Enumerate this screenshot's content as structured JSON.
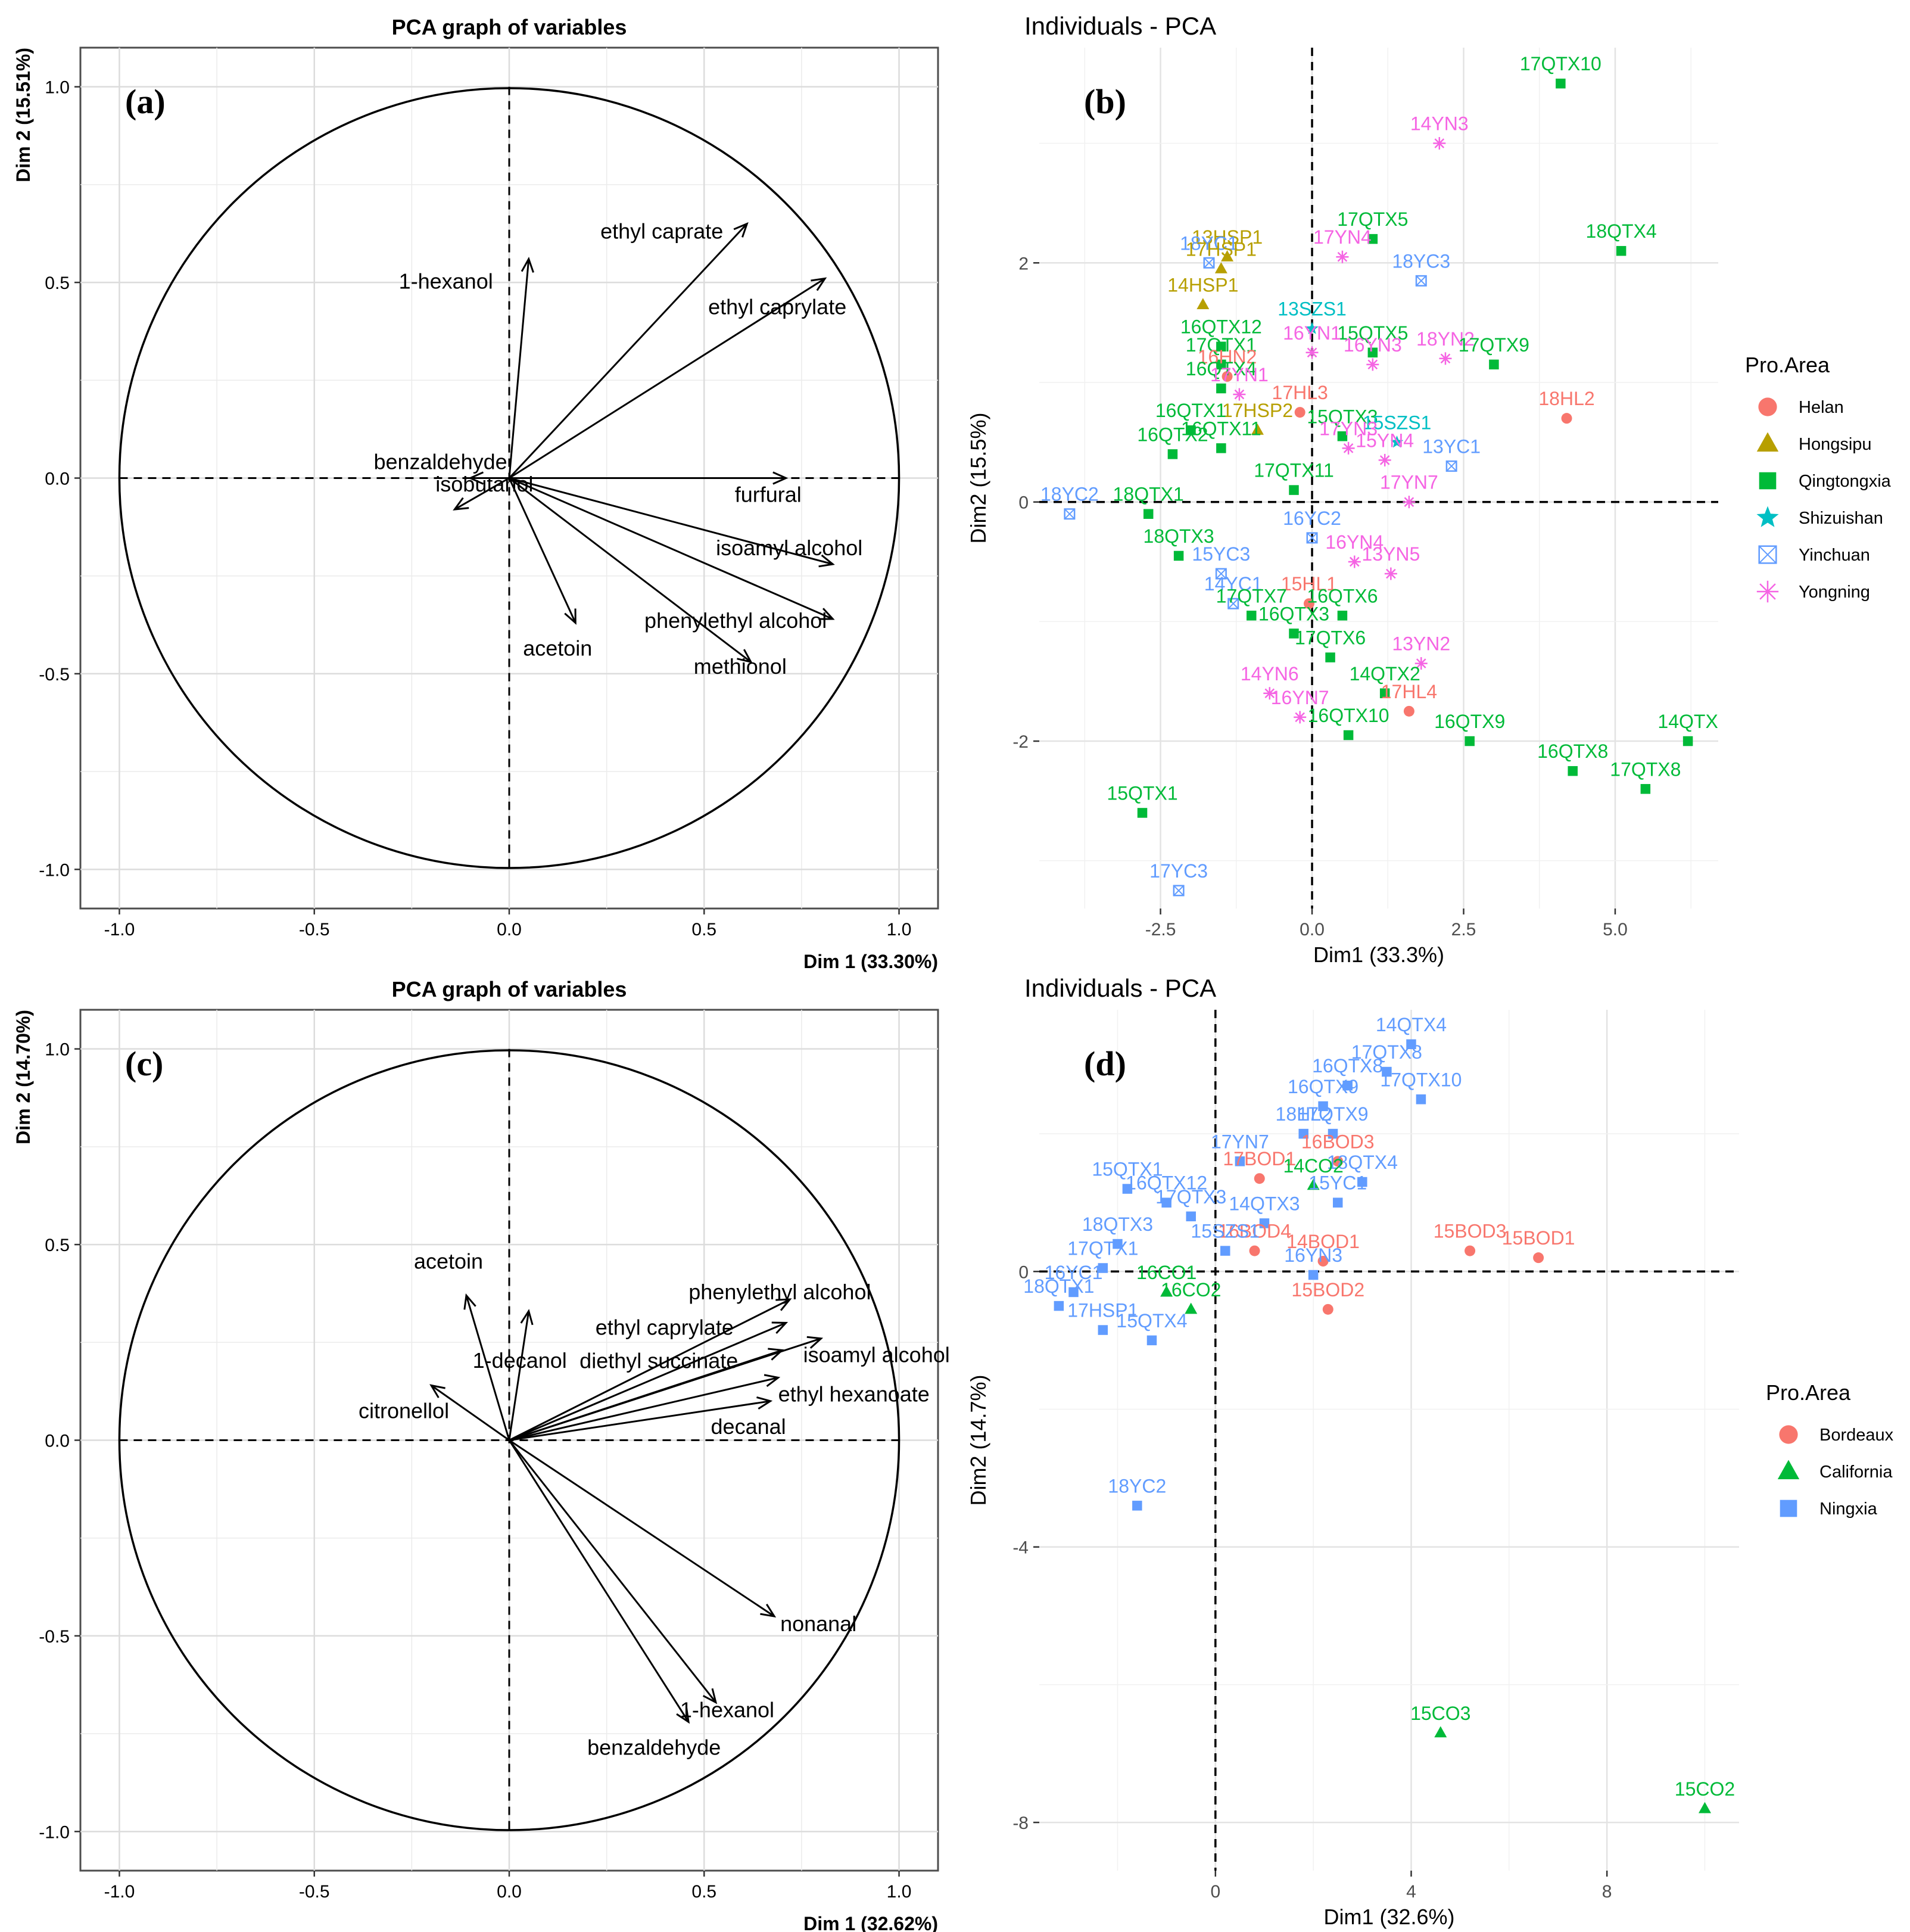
{
  "colors": {
    "helan": "#F8766D",
    "hongsipu": "#B79F00",
    "qingtongxia": "#00BA38",
    "shizuishan": "#00BFC4",
    "yinchuan": "#619CFF",
    "yongning": "#F564E3",
    "bordeaux": "#F8766D",
    "california": "#00BA38",
    "ningxia": "#619CFF",
    "panel_bg_ind": "#FFFFFF",
    "grid": "#EBEBEB",
    "axis_text": "#4D4D4D"
  },
  "chart_data": [
    {
      "id": "a",
      "type": "pca-variables",
      "letter": "(a)",
      "title": "PCA graph of variables",
      "xlabel": "Dim 1 (33.30%)",
      "ylabel": "Dim 2 (15.51%)",
      "xlim": [
        -1.1,
        1.1
      ],
      "ylim": [
        -1.1,
        1.1
      ],
      "xticks": [
        -1.0,
        -0.5,
        0.0,
        0.5,
        1.0
      ],
      "xtick_labels": [
        "-1.0",
        "-0.5",
        "0.0",
        "0.5",
        "1.0"
      ],
      "yticks": [
        -1.0,
        -0.5,
        0.0,
        0.5,
        1.0
      ],
      "ytick_labels": [
        "-1.0",
        "-0.5",
        "0.0",
        "0.5",
        "1.0"
      ],
      "vectors": [
        {
          "name": "1-hexanol",
          "x": 0.05,
          "y": 0.56
        },
        {
          "name": "ethyl caprate",
          "x": 0.61,
          "y": 0.65
        },
        {
          "name": "ethyl caprylate",
          "x": 0.81,
          "y": 0.51
        },
        {
          "name": "benzaldehyde",
          "x": -0.1,
          "y": 0.0
        },
        {
          "name": "isobutanol",
          "x": -0.14,
          "y": -0.08
        },
        {
          "name": "furfural",
          "x": 0.71,
          "y": 0.0
        },
        {
          "name": "isoamyl alcohol",
          "x": 0.83,
          "y": -0.22
        },
        {
          "name": "phenylethyl alcohol",
          "x": 0.83,
          "y": -0.36
        },
        {
          "name": "acetoin",
          "x": 0.17,
          "y": -0.37
        },
        {
          "name": "methionol",
          "x": 0.62,
          "y": -0.47
        }
      ]
    },
    {
      "id": "b",
      "type": "scatter",
      "letter": "(b)",
      "title": "Individuals - PCA",
      "xlabel": "Dim1 (33.3%)",
      "ylabel": "Dim2 (15.5%)",
      "xlim": [
        -4.5,
        6.7
      ],
      "ylim": [
        -3.4,
        3.8
      ],
      "xticks": [
        -2.5,
        0.0,
        2.5,
        5.0
      ],
      "xtick_labels": [
        "-2.5",
        "0.0",
        "2.5",
        "5.0"
      ],
      "yticks": [
        -2,
        0,
        2
      ],
      "ytick_labels": [
        "-2",
        "0",
        "2"
      ],
      "legend": {
        "title": "Pro.Area",
        "position": "right",
        "entries": [
          {
            "name": "Helan",
            "key": "helan",
            "shape": "circle"
          },
          {
            "name": "Hongsipu",
            "key": "hongsipu",
            "shape": "triangle"
          },
          {
            "name": "Qingtongxia",
            "key": "qingtongxia",
            "shape": "square"
          },
          {
            "name": "Shizuishan",
            "key": "shizuishan",
            "shape": "star"
          },
          {
            "name": "Yinchuan",
            "key": "yinchuan",
            "shape": "boxx"
          },
          {
            "name": "Yongning",
            "key": "yongning",
            "shape": "asterisk"
          }
        ]
      },
      "points": [
        {
          "label": "17QTX10",
          "x": 4.1,
          "y": 3.5,
          "g": "qingtongxia"
        },
        {
          "label": "14YN3",
          "x": 2.1,
          "y": 3.0,
          "g": "yongning"
        },
        {
          "label": "17QTX5",
          "x": 1.0,
          "y": 2.2,
          "g": "qingtongxia"
        },
        {
          "label": "18QTX4",
          "x": 5.1,
          "y": 2.1,
          "g": "qingtongxia"
        },
        {
          "label": "17YN4",
          "x": 0.5,
          "y": 2.05,
          "g": "yongning"
        },
        {
          "label": "18YC3",
          "x": 1.8,
          "y": 1.85,
          "g": "yinchuan"
        },
        {
          "label": "13HSP1",
          "x": -1.4,
          "y": 2.05,
          "g": "hongsipu"
        },
        {
          "label": "18YC1",
          "x": -1.7,
          "y": 2.0,
          "g": "yinchuan"
        },
        {
          "label": "17HSP1",
          "x": -1.5,
          "y": 1.95,
          "g": "hongsipu"
        },
        {
          "label": "14HSP1",
          "x": -1.8,
          "y": 1.65,
          "g": "hongsipu"
        },
        {
          "label": "13SZS1",
          "x": 0.0,
          "y": 1.45,
          "g": "shizuishan"
        },
        {
          "label": "16QTX12",
          "x": -1.5,
          "y": 1.3,
          "g": "qingtongxia"
        },
        {
          "label": "15QTX5",
          "x": 1.0,
          "y": 1.25,
          "g": "qingtongxia"
        },
        {
          "label": "16YN1",
          "x": 0.0,
          "y": 1.25,
          "g": "yongning"
        },
        {
          "label": "16YN3",
          "x": 1.0,
          "y": 1.15,
          "g": "yongning"
        },
        {
          "label": "18YN2",
          "x": 2.2,
          "y": 1.2,
          "g": "yongning"
        },
        {
          "label": "17QTX9",
          "x": 3.0,
          "y": 1.15,
          "g": "qingtongxia"
        },
        {
          "label": "17QTX1",
          "x": -1.5,
          "y": 1.15,
          "g": "qingtongxia"
        },
        {
          "label": "16HN2",
          "x": -1.4,
          "y": 1.05,
          "g": "helan"
        },
        {
          "label": "16QTX4",
          "x": -1.5,
          "y": 0.95,
          "g": "qingtongxia"
        },
        {
          "label": "17YN1",
          "x": -1.2,
          "y": 0.9,
          "g": "yongning"
        },
        {
          "label": "18HL2",
          "x": 4.2,
          "y": 0.7,
          "g": "helan"
        },
        {
          "label": "17HL3",
          "x": -0.2,
          "y": 0.75,
          "g": "helan"
        },
        {
          "label": "17HSP2",
          "x": -0.9,
          "y": 0.6,
          "g": "hongsipu"
        },
        {
          "label": "15QTX3",
          "x": 0.5,
          "y": 0.55,
          "g": "qingtongxia"
        },
        {
          "label": "15SZS1",
          "x": 1.4,
          "y": 0.5,
          "g": "shizuishan"
        },
        {
          "label": "16QTX1",
          "x": -2.0,
          "y": 0.6,
          "g": "qingtongxia"
        },
        {
          "label": "16QTX2",
          "x": -2.3,
          "y": 0.4,
          "g": "qingtongxia"
        },
        {
          "label": "13YC1",
          "x": 2.3,
          "y": 0.3,
          "g": "yinchuan"
        },
        {
          "label": "16QTX11",
          "x": -1.5,
          "y": 0.45,
          "g": "qingtongxia"
        },
        {
          "label": "17YN3",
          "x": 0.6,
          "y": 0.45,
          "g": "yongning"
        },
        {
          "label": "15YN4",
          "x": 1.2,
          "y": 0.35,
          "g": "yongning"
        },
        {
          "label": "17YN7",
          "x": 1.6,
          "y": 0.0,
          "g": "yongning"
        },
        {
          "label": "18YC2",
          "x": -4.0,
          "y": -0.1,
          "g": "yinchuan"
        },
        {
          "label": "18QTX1",
          "x": -2.7,
          "y": -0.1,
          "g": "qingtongxia"
        },
        {
          "label": "18QTX3",
          "x": -2.2,
          "y": -0.45,
          "g": "qingtongxia"
        },
        {
          "label": "17QTX11",
          "x": -0.3,
          "y": 0.1,
          "g": "qingtongxia"
        },
        {
          "label": "16YC2",
          "x": 0.0,
          "y": -0.3,
          "g": "yinchuan"
        },
        {
          "label": "16YN4",
          "x": 0.7,
          "y": -0.5,
          "g": "yongning"
        },
        {
          "label": "13YN5",
          "x": 1.3,
          "y": -0.6,
          "g": "yongning"
        },
        {
          "label": "15YC3",
          "x": -1.5,
          "y": -0.6,
          "g": "yinchuan"
        },
        {
          "label": "15HL1",
          "x": -0.05,
          "y": -0.85,
          "g": "helan"
        },
        {
          "label": "14YC1",
          "x": -1.3,
          "y": -0.85,
          "g": "yinchuan"
        },
        {
          "label": "17QTX7",
          "x": -1.0,
          "y": -0.95,
          "g": "qingtongxia"
        },
        {
          "label": "16QTX6",
          "x": 0.5,
          "y": -0.95,
          "g": "qingtongxia"
        },
        {
          "label": "16QTX3",
          "x": -0.3,
          "y": -1.1,
          "g": "qingtongxia"
        },
        {
          "label": "17QTX6",
          "x": 0.3,
          "y": -1.3,
          "g": "qingtongxia"
        },
        {
          "label": "13YN2",
          "x": 1.8,
          "y": -1.35,
          "g": "yongning"
        },
        {
          "label": "14QTX2",
          "x": 1.2,
          "y": -1.6,
          "g": "qingtongxia"
        },
        {
          "label": "17HL4",
          "x": 1.6,
          "y": -1.75,
          "g": "helan"
        },
        {
          "label": "14YN6",
          "x": -0.7,
          "y": -1.6,
          "g": "yongning"
        },
        {
          "label": "16YN7",
          "x": -0.2,
          "y": -1.8,
          "g": "yongning"
        },
        {
          "label": "16QTX10",
          "x": 0.6,
          "y": -1.95,
          "g": "qingtongxia"
        },
        {
          "label": "16QTX9",
          "x": 2.6,
          "y": -2.0,
          "g": "qingtongxia"
        },
        {
          "label": "16QTX8",
          "x": 4.3,
          "y": -2.25,
          "g": "qingtongxia"
        },
        {
          "label": "17QTX8",
          "x": 5.5,
          "y": -2.4,
          "g": "qingtongxia"
        },
        {
          "label": "14QTX",
          "x": 6.2,
          "y": -2.0,
          "g": "qingtongxia"
        },
        {
          "label": "15QTX1",
          "x": -2.8,
          "y": -2.6,
          "g": "qingtongxia"
        },
        {
          "label": "17YC3",
          "x": -2.2,
          "y": -3.25,
          "g": "yinchuan"
        }
      ]
    },
    {
      "id": "c",
      "type": "pca-variables",
      "letter": "(c)",
      "title": "PCA graph of variables",
      "xlabel": "Dim 1 (32.62%)",
      "ylabel": "Dim 2 (14.70%)",
      "xlim": [
        -1.1,
        1.1
      ],
      "ylim": [
        -1.1,
        1.1
      ],
      "xticks": [
        -1.0,
        -0.5,
        0.0,
        0.5,
        1.0
      ],
      "xtick_labels": [
        "-1.0",
        "-0.5",
        "0.0",
        "0.5",
        "1.0"
      ],
      "yticks": [
        -1.0,
        -0.5,
        0.0,
        0.5,
        1.0
      ],
      "ytick_labels": [
        "-1.0",
        "-0.5",
        "0.0",
        "0.5",
        "1.0"
      ],
      "vectors": [
        {
          "name": "acetoin",
          "x": -0.11,
          "y": 0.37
        },
        {
          "name": "1-decanol",
          "x": 0.05,
          "y": 0.33
        },
        {
          "name": "citronellol",
          "x": -0.2,
          "y": 0.14
        },
        {
          "name": "phenylethyl alcohol",
          "x": 0.72,
          "y": 0.36
        },
        {
          "name": "ethyl caprylate",
          "x": 0.71,
          "y": 0.3
        },
        {
          "name": "diethyl succinate",
          "x": 0.7,
          "y": 0.23
        },
        {
          "name": "isoamyl alcohol",
          "x": 0.8,
          "y": 0.26
        },
        {
          "name": "ethyl hexanoate",
          "x": 0.69,
          "y": 0.16
        },
        {
          "name": "decanal",
          "x": 0.67,
          "y": 0.1
        },
        {
          "name": "nonanal",
          "x": 0.68,
          "y": -0.45
        },
        {
          "name": "1-hexanol",
          "x": 0.53,
          "y": -0.67
        },
        {
          "name": "benzaldehyde",
          "x": 0.46,
          "y": -0.72
        }
      ]
    },
    {
      "id": "d",
      "type": "scatter",
      "letter": "(d)",
      "title": "Individuals - PCA",
      "xlabel": "Dim1 (32.6%)",
      "ylabel": "Dim2 (14.7%)",
      "xlim": [
        -3.6,
        10.7
      ],
      "ylim": [
        -8.7,
        3.8
      ],
      "xticks": [
        0,
        4,
        8
      ],
      "xtick_labels": [
        "0",
        "4",
        "8"
      ],
      "yticks": [
        -8,
        -4,
        0
      ],
      "ytick_labels": [
        "-8",
        "-4",
        "0"
      ],
      "legend": {
        "title": "Pro.Area",
        "position": "right",
        "entries": [
          {
            "name": "Bordeaux",
            "key": "bordeaux",
            "shape": "circle"
          },
          {
            "name": "California",
            "key": "california",
            "shape": "triangle"
          },
          {
            "name": "Ningxia",
            "key": "ningxia",
            "shape": "square"
          }
        ]
      },
      "points": [
        {
          "label": "14QTX4",
          "x": 4.0,
          "y": 3.3,
          "g": "ningxia"
        },
        {
          "label": "17QTX8",
          "x": 3.5,
          "y": 2.9,
          "g": "ningxia"
        },
        {
          "label": "17QTX10",
          "x": 4.2,
          "y": 2.5,
          "g": "ningxia"
        },
        {
          "label": "16QTX8",
          "x": 2.7,
          "y": 2.7,
          "g": "ningxia"
        },
        {
          "label": "16QTX9",
          "x": 2.2,
          "y": 2.4,
          "g": "ningxia"
        },
        {
          "label": "18HL2",
          "x": 1.8,
          "y": 2.0,
          "g": "ningxia"
        },
        {
          "label": "17QTX9",
          "x": 2.4,
          "y": 2.0,
          "g": "ningxia"
        },
        {
          "label": "17YN7",
          "x": 0.5,
          "y": 1.6,
          "g": "ningxia"
        },
        {
          "label": "16BOD3",
          "x": 2.5,
          "y": 1.6,
          "g": "bordeaux"
        },
        {
          "label": "17BOD1",
          "x": 0.9,
          "y": 1.35,
          "g": "bordeaux"
        },
        {
          "label": "18QTX4",
          "x": 3.0,
          "y": 1.3,
          "g": "ningxia"
        },
        {
          "label": "14CO2",
          "x": 2.0,
          "y": 1.25,
          "g": "california"
        },
        {
          "label": "15QTX1",
          "x": -1.8,
          "y": 1.2,
          "g": "ningxia"
        },
        {
          "label": "16QTX12",
          "x": -1.0,
          "y": 1.0,
          "g": "ningxia"
        },
        {
          "label": "15YC1",
          "x": 2.5,
          "y": 1.0,
          "g": "ningxia"
        },
        {
          "label": "17QTX3",
          "x": -0.5,
          "y": 0.8,
          "g": "ningxia"
        },
        {
          "label": "14QTX3",
          "x": 1.0,
          "y": 0.7,
          "g": "ningxia"
        },
        {
          "label": "18QTX3",
          "x": -2.0,
          "y": 0.4,
          "g": "ningxia"
        },
        {
          "label": "15BOD3",
          "x": 5.2,
          "y": 0.3,
          "g": "bordeaux"
        },
        {
          "label": "15BOD1",
          "x": 6.6,
          "y": 0.2,
          "g": "bordeaux"
        },
        {
          "label": "16BOD4",
          "x": 0.8,
          "y": 0.3,
          "g": "bordeaux"
        },
        {
          "label": "14BOD1",
          "x": 2.2,
          "y": 0.15,
          "g": "bordeaux"
        },
        {
          "label": "15SZS1",
          "x": 0.2,
          "y": 0.3,
          "g": "ningxia"
        },
        {
          "label": "17QTX1",
          "x": -2.3,
          "y": 0.05,
          "g": "ningxia"
        },
        {
          "label": "16YN3",
          "x": 2.0,
          "y": -0.05,
          "g": "ningxia"
        },
        {
          "label": "16YC1",
          "x": -2.9,
          "y": -0.3,
          "g": "ningxia"
        },
        {
          "label": "16CO1",
          "x": -1.0,
          "y": -0.3,
          "g": "california"
        },
        {
          "label": "15BOD2",
          "x": 2.3,
          "y": -0.55,
          "g": "bordeaux"
        },
        {
          "label": "18QTX1",
          "x": -3.2,
          "y": -0.5,
          "g": "ningxia"
        },
        {
          "label": "16CO2",
          "x": -0.5,
          "y": -0.55,
          "g": "california"
        },
        {
          "label": "17HSP1",
          "x": -2.3,
          "y": -0.85,
          "g": "ningxia"
        },
        {
          "label": "15QTX4",
          "x": -1.3,
          "y": -1.0,
          "g": "ningxia"
        },
        {
          "label": "18YC2",
          "x": -1.6,
          "y": -3.4,
          "g": "ningxia"
        },
        {
          "label": "15CO3",
          "x": 4.6,
          "y": -6.7,
          "g": "california"
        },
        {
          "label": "15CO2",
          "x": 10.0,
          "y": -7.8,
          "g": "california"
        }
      ]
    }
  ]
}
